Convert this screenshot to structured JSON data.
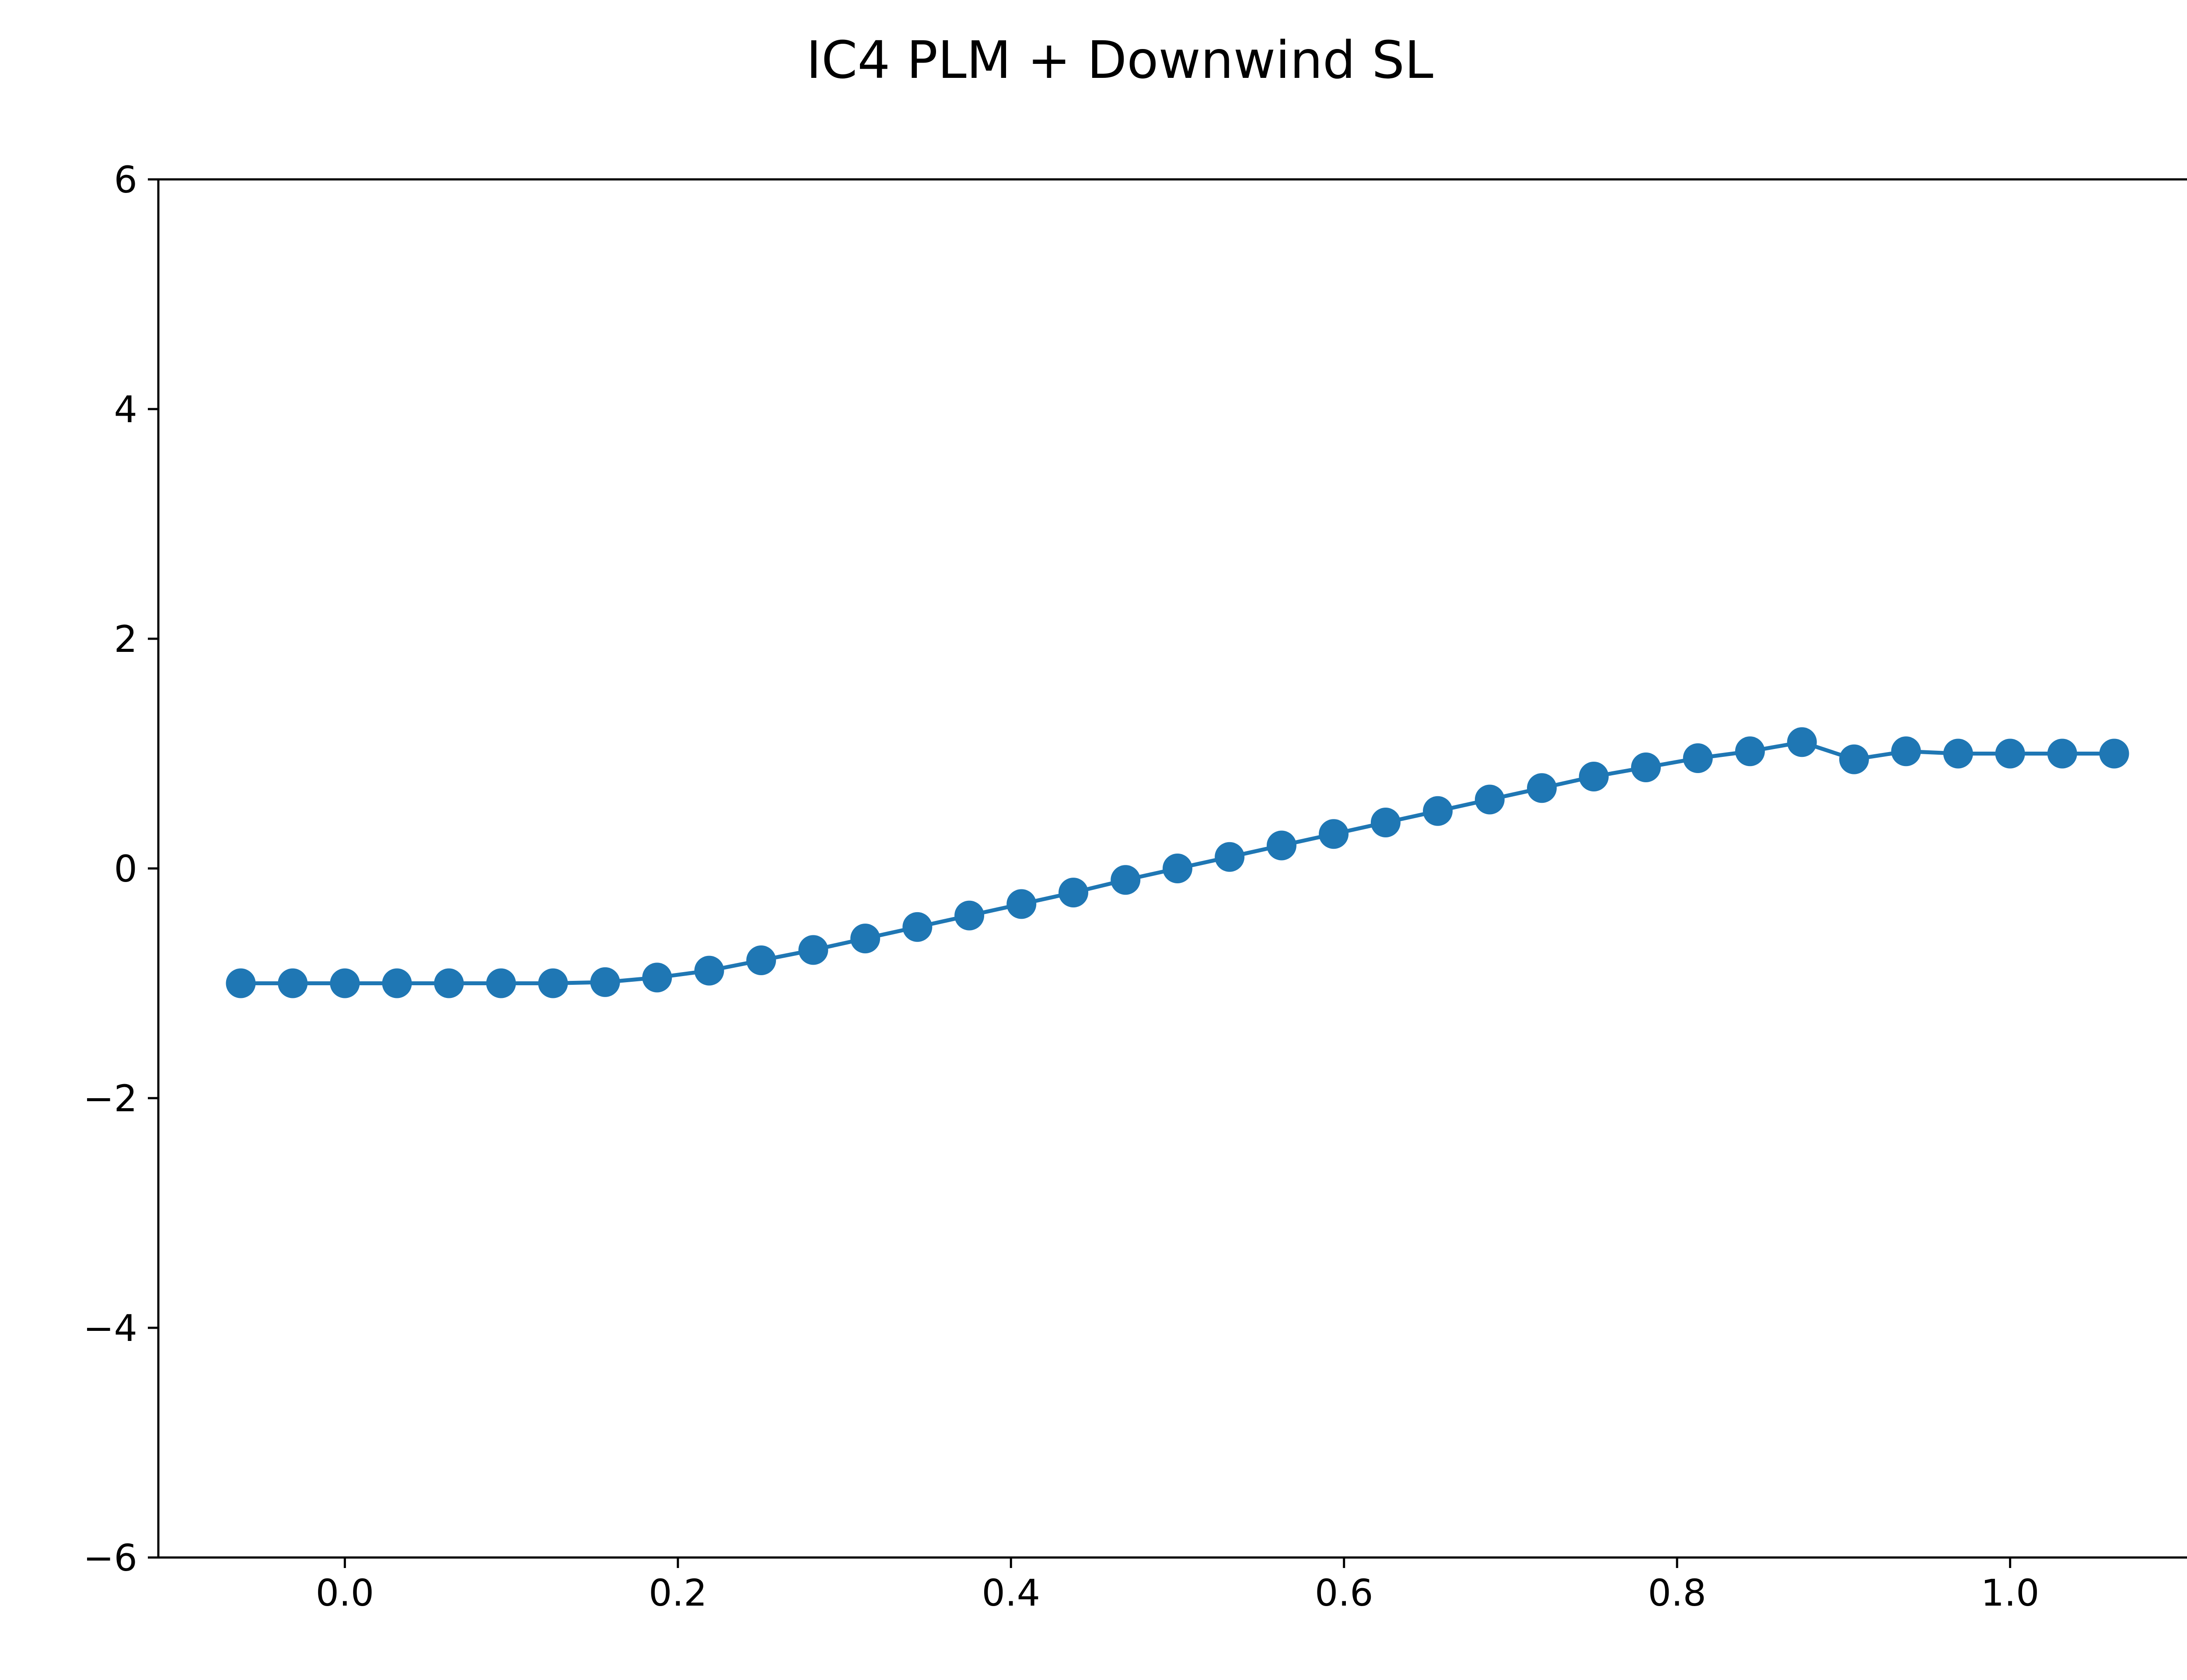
{
  "chart_data": {
    "type": "line",
    "title": "IC4 PLM + Downwind SL",
    "xlabel": "",
    "ylabel": "",
    "xlim": [
      -0.112,
      1.112
    ],
    "ylim": [
      -6,
      6
    ],
    "x_ticks": [
      0.0,
      0.2,
      0.4,
      0.6,
      0.8,
      1.0
    ],
    "x_tick_labels": [
      "0.0",
      "0.2",
      "0.4",
      "0.6",
      "0.8",
      "1.0"
    ],
    "y_ticks": [
      -6,
      -4,
      -2,
      0,
      2,
      4,
      6
    ],
    "y_tick_labels": [
      "−6",
      "−4",
      "−2",
      "0",
      "2",
      "4",
      "6"
    ],
    "grid": false,
    "legend": "none",
    "series": [
      {
        "color": "#1f77b4",
        "marker": "circle",
        "x": [
          -0.0625,
          -0.0313,
          0.0,
          0.0313,
          0.0625,
          0.0938,
          0.125,
          0.1563,
          0.1875,
          0.2188,
          0.25,
          0.2813,
          0.3125,
          0.3438,
          0.375,
          0.4063,
          0.4375,
          0.4688,
          0.5,
          0.5313,
          0.5625,
          0.5938,
          0.625,
          0.6563,
          0.6875,
          0.7188,
          0.75,
          0.7813,
          0.8125,
          0.8438,
          0.875,
          0.9063,
          0.9375,
          0.9688,
          1.0,
          1.0313,
          1.0625
        ],
        "y": [
          -1.0,
          -1.0,
          -1.0,
          -1.0,
          -1.0,
          -1.0,
          -1.0,
          -0.99,
          -0.95,
          -0.89,
          -0.8,
          -0.71,
          -0.61,
          -0.51,
          -0.41,
          -0.31,
          -0.21,
          -0.1,
          0.0,
          0.1,
          0.2,
          0.3,
          0.4,
          0.5,
          0.6,
          0.7,
          0.8,
          0.88,
          0.96,
          1.02,
          1.1,
          0.95,
          1.02,
          1.0,
          1.0,
          1.0,
          1.0
        ]
      }
    ]
  }
}
